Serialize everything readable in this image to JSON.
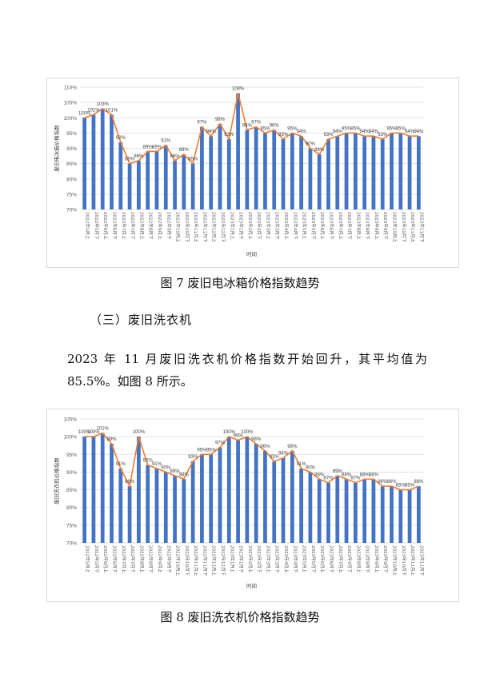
{
  "doc": {
    "caption1": "图 7  废旧电冰箱价格指数趋势",
    "heading": "（三）废旧洗衣机",
    "para_line1": "2023  年  11  月废旧洗衣机价格指数开始回升，其平均值为",
    "para_line2": "85.5%。如图 8 所示。",
    "caption2": "图 8  废旧洗衣机价格指数趋势"
  },
  "chart_data": [
    {
      "type": "bar",
      "ylabel": "废旧电冰箱价格指数",
      "xlabel": "时间",
      "ylim": [
        70,
        110
      ],
      "yticks": [
        "70%",
        "75%",
        "80%",
        "85%",
        "90%",
        "95%",
        "100%",
        "105%",
        "110%"
      ],
      "bar_color": "#4472c4",
      "line_color": "#ed7d31",
      "categories": [
        "2022年5月上",
        "2022年5月下",
        "2022年6月上",
        "2022年6月下",
        "2022年7月上",
        "2022年7月下",
        "2022年8月上",
        "2022年8月下",
        "2022年9月上",
        "2022年9月下",
        "2022年10月上",
        "2022年10月下",
        "2022年11月上",
        "2022年11月下",
        "2022年12月上",
        "2022年12月下",
        "2023年1月上",
        "2023年1月下",
        "2023年2月上",
        "2023年2月下",
        "2023年3月上",
        "2023年3月下",
        "2023年4月上",
        "2023年4月下",
        "2023年5月上",
        "2023年5月下",
        "2023年6月上",
        "2023年6月下",
        "2023年7月上",
        "2023年7月下",
        "2023年8月上",
        "2023年8月下",
        "2023年9月上",
        "2023年9月下",
        "2023年10月上",
        "2023年10月下",
        "2023年11月上",
        "2023年11月下"
      ],
      "values": [
        100,
        101,
        103,
        101,
        92,
        85,
        86,
        89,
        89,
        91,
        86,
        88,
        85,
        97,
        94,
        98,
        93,
        108,
        96,
        97,
        95,
        96,
        93,
        95,
        94,
        90,
        88,
        93,
        94,
        95,
        95,
        94,
        94,
        93,
        95,
        95,
        94,
        94
      ],
      "labels": [
        "100%",
        "101%",
        "103%",
        "101%",
        "92%",
        "85%",
        "86%",
        "89%",
        "89%",
        "91%",
        "86%",
        "88%",
        "85%",
        "97%",
        "94%",
        "98%",
        "93%",
        "108%",
        "96%",
        "97%",
        "95%",
        "96%",
        "93%",
        "95%",
        "94%",
        "90%",
        "88%",
        "93%",
        "94%",
        "95%",
        "95%",
        "94%",
        "94%",
        "93%",
        "95%",
        "95%",
        "94%",
        "94%"
      ]
    },
    {
      "type": "bar",
      "ylabel": "废旧洗衣机价格指数",
      "xlabel": "时间",
      "ylim": [
        70,
        105
      ],
      "yticks": [
        "70%",
        "75%",
        "80%",
        "85%",
        "90%",
        "95%",
        "100%",
        "105%"
      ],
      "bar_color": "#4472c4",
      "line_color": "#ed7d31",
      "categories": [
        "2022年5月上",
        "2022年5月下",
        "2022年6月上",
        "2022年6月下",
        "2022年7月上",
        "2022年7月下",
        "2022年8月上",
        "2022年8月下",
        "2022年9月上",
        "2022年9月下",
        "2022年10月上",
        "2022年10月下",
        "2022年11月上",
        "2022年11月下",
        "2022年12月上",
        "2022年12月下",
        "2023年1月上",
        "2023年1月下",
        "2023年2月上",
        "2023年2月下",
        "2023年3月上",
        "2023年3月下",
        "2023年4月上",
        "2023年4月下",
        "2023年5月上",
        "2023年5月下",
        "2023年6月上",
        "2023年6月下",
        "2023年7月上",
        "2023年7月下",
        "2023年8月上",
        "2023年8月下",
        "2023年9月上",
        "2023年9月下",
        "2023年10月上",
        "2023年10月下",
        "2023年11月上",
        "2023年11月下"
      ],
      "values": [
        100,
        100,
        101,
        98,
        91,
        86,
        100,
        92,
        91,
        90,
        89,
        88,
        93,
        95,
        95,
        97,
        100,
        99,
        100,
        98,
        96,
        93,
        94,
        96,
        91,
        90,
        88,
        87,
        89,
        88,
        87,
        88,
        88,
        86,
        86,
        85,
        85,
        86
      ],
      "labels": [
        "100%",
        "100%",
        "101%",
        "98%",
        "91%",
        "86%",
        "100%",
        "92%",
        "91%",
        "90%",
        "89%",
        "88%",
        "93%",
        "95%",
        "95%",
        "97%",
        "100%",
        "99%",
        "100%",
        "98%",
        "96%",
        "93%",
        "94%",
        "96%",
        "91%",
        "90%",
        "88%",
        "87%",
        "89%",
        "88%",
        "87%",
        "88%",
        "88%",
        "86%",
        "86%",
        "85%",
        "85%",
        "86%"
      ]
    }
  ]
}
